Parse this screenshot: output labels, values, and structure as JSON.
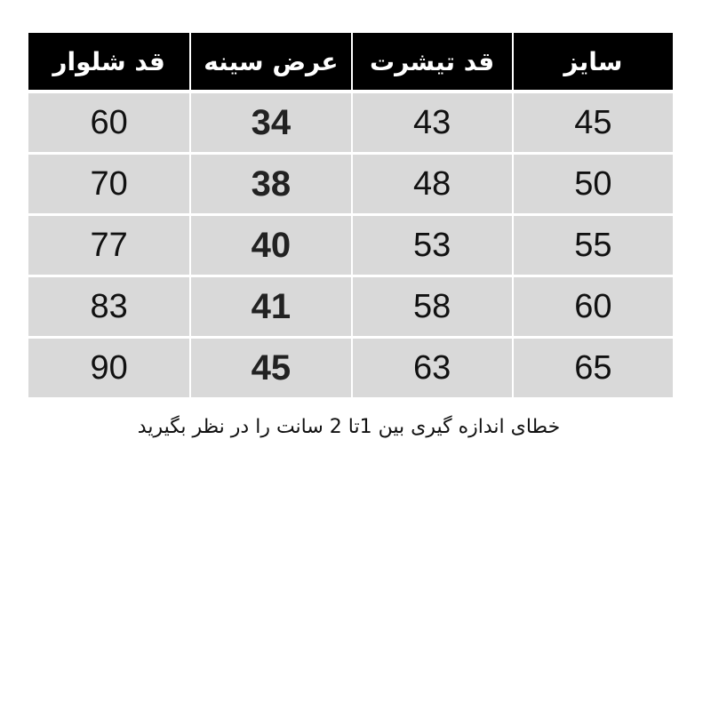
{
  "table": {
    "headers": [
      "سایز",
      "قد تیشرت",
      "عرض سینه",
      "قد شلوار"
    ],
    "rows": [
      [
        "45",
        "43",
        "34",
        "60"
      ],
      [
        "50",
        "48",
        "38",
        "70"
      ],
      [
        "55",
        "53",
        "40",
        "77"
      ],
      [
        "60",
        "58",
        "41",
        "83"
      ],
      [
        "65",
        "63",
        "45",
        "90"
      ]
    ]
  },
  "note": "خطای اندازه گیری بین  1تا 2 سانت را در نظر بگیرید",
  "colors": {
    "header_bg": "#000000",
    "cell_bg": "#d9d9d9"
  }
}
